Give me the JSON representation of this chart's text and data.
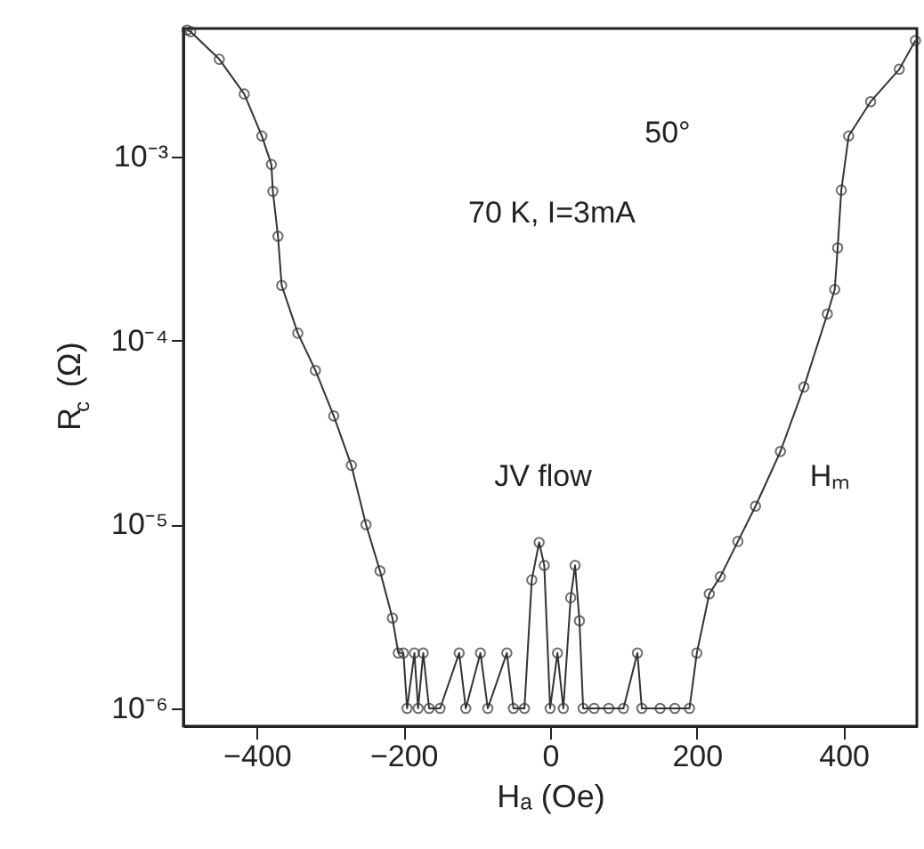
{
  "chart_data": {
    "type": "line",
    "xlabel": "Hₐ (Oe)",
    "ylabel": "R$_{c}$ (Ω)",
    "log": "y",
    "marker": "circle",
    "line_style": "solid",
    "grid": false,
    "xlim": [
      -500,
      500
    ],
    "xticks": [
      -400,
      -200,
      0,
      200,
      400
    ],
    "ylim": [
      8e-07,
      0.005
    ],
    "yticks": [
      {
        "value": 1e-06,
        "label": "10⁻⁶"
      },
      {
        "value": 1e-05,
        "label": "10⁻⁵"
      },
      {
        "value": 0.0001,
        "label": "10⁻⁴"
      },
      {
        "value": 0.001,
        "label": "10⁻³"
      }
    ],
    "series": [
      {
        "color": "#333333",
        "x": [
          -495,
          -490,
          -451,
          -417,
          -393,
          -380,
          -378,
          -371,
          -366,
          -344,
          -320,
          -295,
          -271,
          -251,
          -232,
          -215,
          -207,
          -200,
          -195,
          -185,
          -180,
          -173,
          -165,
          -150,
          -124,
          -115,
          -95,
          -85,
          -59,
          -50,
          -35,
          -25,
          -15,
          -8,
          0,
          10,
          18,
          28,
          34,
          40,
          45,
          60,
          80,
          100,
          119,
          125,
          150,
          170,
          190,
          200,
          217,
          232,
          256,
          280,
          314,
          346,
          378,
          388,
          392,
          397,
          407,
          437,
          476,
          498
        ],
        "values": [
          0.0049,
          0.0048,
          0.0034,
          0.0022,
          0.0013,
          0.00091,
          0.00065,
          0.00037,
          0.0002,
          0.00011,
          6.9e-05,
          3.9e-05,
          2.1e-05,
          1e-05,
          5.6e-06,
          3.1e-06,
          2e-06,
          2e-06,
          1e-06,
          2e-06,
          1e-06,
          2e-06,
          1e-06,
          1e-06,
          2e-06,
          1e-06,
          2e-06,
          1e-06,
          2e-06,
          1e-06,
          1e-06,
          5e-06,
          8e-06,
          6e-06,
          1e-06,
          2e-06,
          1e-06,
          4e-06,
          6e-06,
          3e-06,
          1e-06,
          1e-06,
          1e-06,
          1e-06,
          2e-06,
          1e-06,
          1e-06,
          1e-06,
          1e-06,
          2e-06,
          4.2e-06,
          5.2e-06,
          8.1e-06,
          1.26e-05,
          2.5e-05,
          5.6e-05,
          0.00014,
          0.00019,
          0.00032,
          0.00066,
          0.0013,
          0.002,
          0.003,
          0.0043
        ]
      }
    ],
    "annotations": [
      "70 K, I=3mA",
      "50°",
      "JV flow",
      "Hₘ"
    ]
  }
}
